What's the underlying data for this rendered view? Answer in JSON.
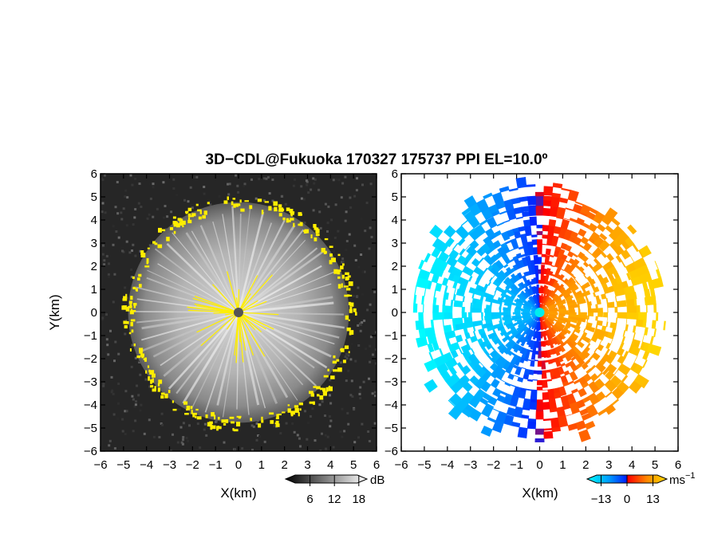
{
  "title": "3D−CDL@Fukuoka 170327 175737 PPI EL=10.0º",
  "chart_data": [
    {
      "type": "heatmap",
      "panel": "left",
      "quantity": "signal intensity",
      "xlabel": "X(km)",
      "ylabel": "Y(km)",
      "xlim": [
        -6,
        6
      ],
      "ylim": [
        -6,
        6
      ],
      "xticks": [
        "−6",
        "−5",
        "−4",
        "−3",
        "−2",
        "−1",
        "0",
        "1",
        "2",
        "3",
        "4",
        "5",
        "6"
      ],
      "yticks": [
        "−6",
        "−5",
        "−4",
        "−3",
        "−2",
        "−1",
        "0",
        "1",
        "2",
        "3",
        "4",
        "5",
        "6"
      ],
      "colormap": "grayscale",
      "highlight_color": "#ffee00",
      "center_marker_color": "#555555",
      "data_radius_km": 4.8,
      "colorbar": {
        "unit": "dB",
        "ticks": [
          6,
          12,
          18
        ],
        "tick_labels": [
          "6",
          "12",
          "18"
        ],
        "range": [
          0,
          20
        ]
      }
    },
    {
      "type": "heatmap",
      "panel": "right",
      "quantity": "radial velocity",
      "xlabel": "X(km)",
      "xlim": [
        -6,
        6
      ],
      "ylim": [
        -6,
        6
      ],
      "xticks": [
        "−6",
        "−5",
        "−4",
        "−3",
        "−2",
        "−1",
        "0",
        "1",
        "2",
        "3",
        "4",
        "5",
        "6"
      ],
      "yticks": [
        "−6",
        "−5",
        "−4",
        "−3",
        "−2",
        "−1",
        "0",
        "1",
        "2",
        "3",
        "4",
        "5",
        "6"
      ],
      "colormap": "cyan-blue-red-orange-yellow",
      "colors": [
        "#00ffff",
        "#0099ff",
        "#0022ff",
        "#ff0000",
        "#ff8800",
        "#ffdd00"
      ],
      "center_marker_color": "#00eeee",
      "data_radius_km": 5.9,
      "colorbar": {
        "unit": "ms",
        "unit_superscript": "−1",
        "ticks": [
          -13,
          0,
          13
        ],
        "tick_labels": [
          "−13",
          "0",
          "13"
        ],
        "range": [
          -20,
          20
        ]
      }
    }
  ]
}
